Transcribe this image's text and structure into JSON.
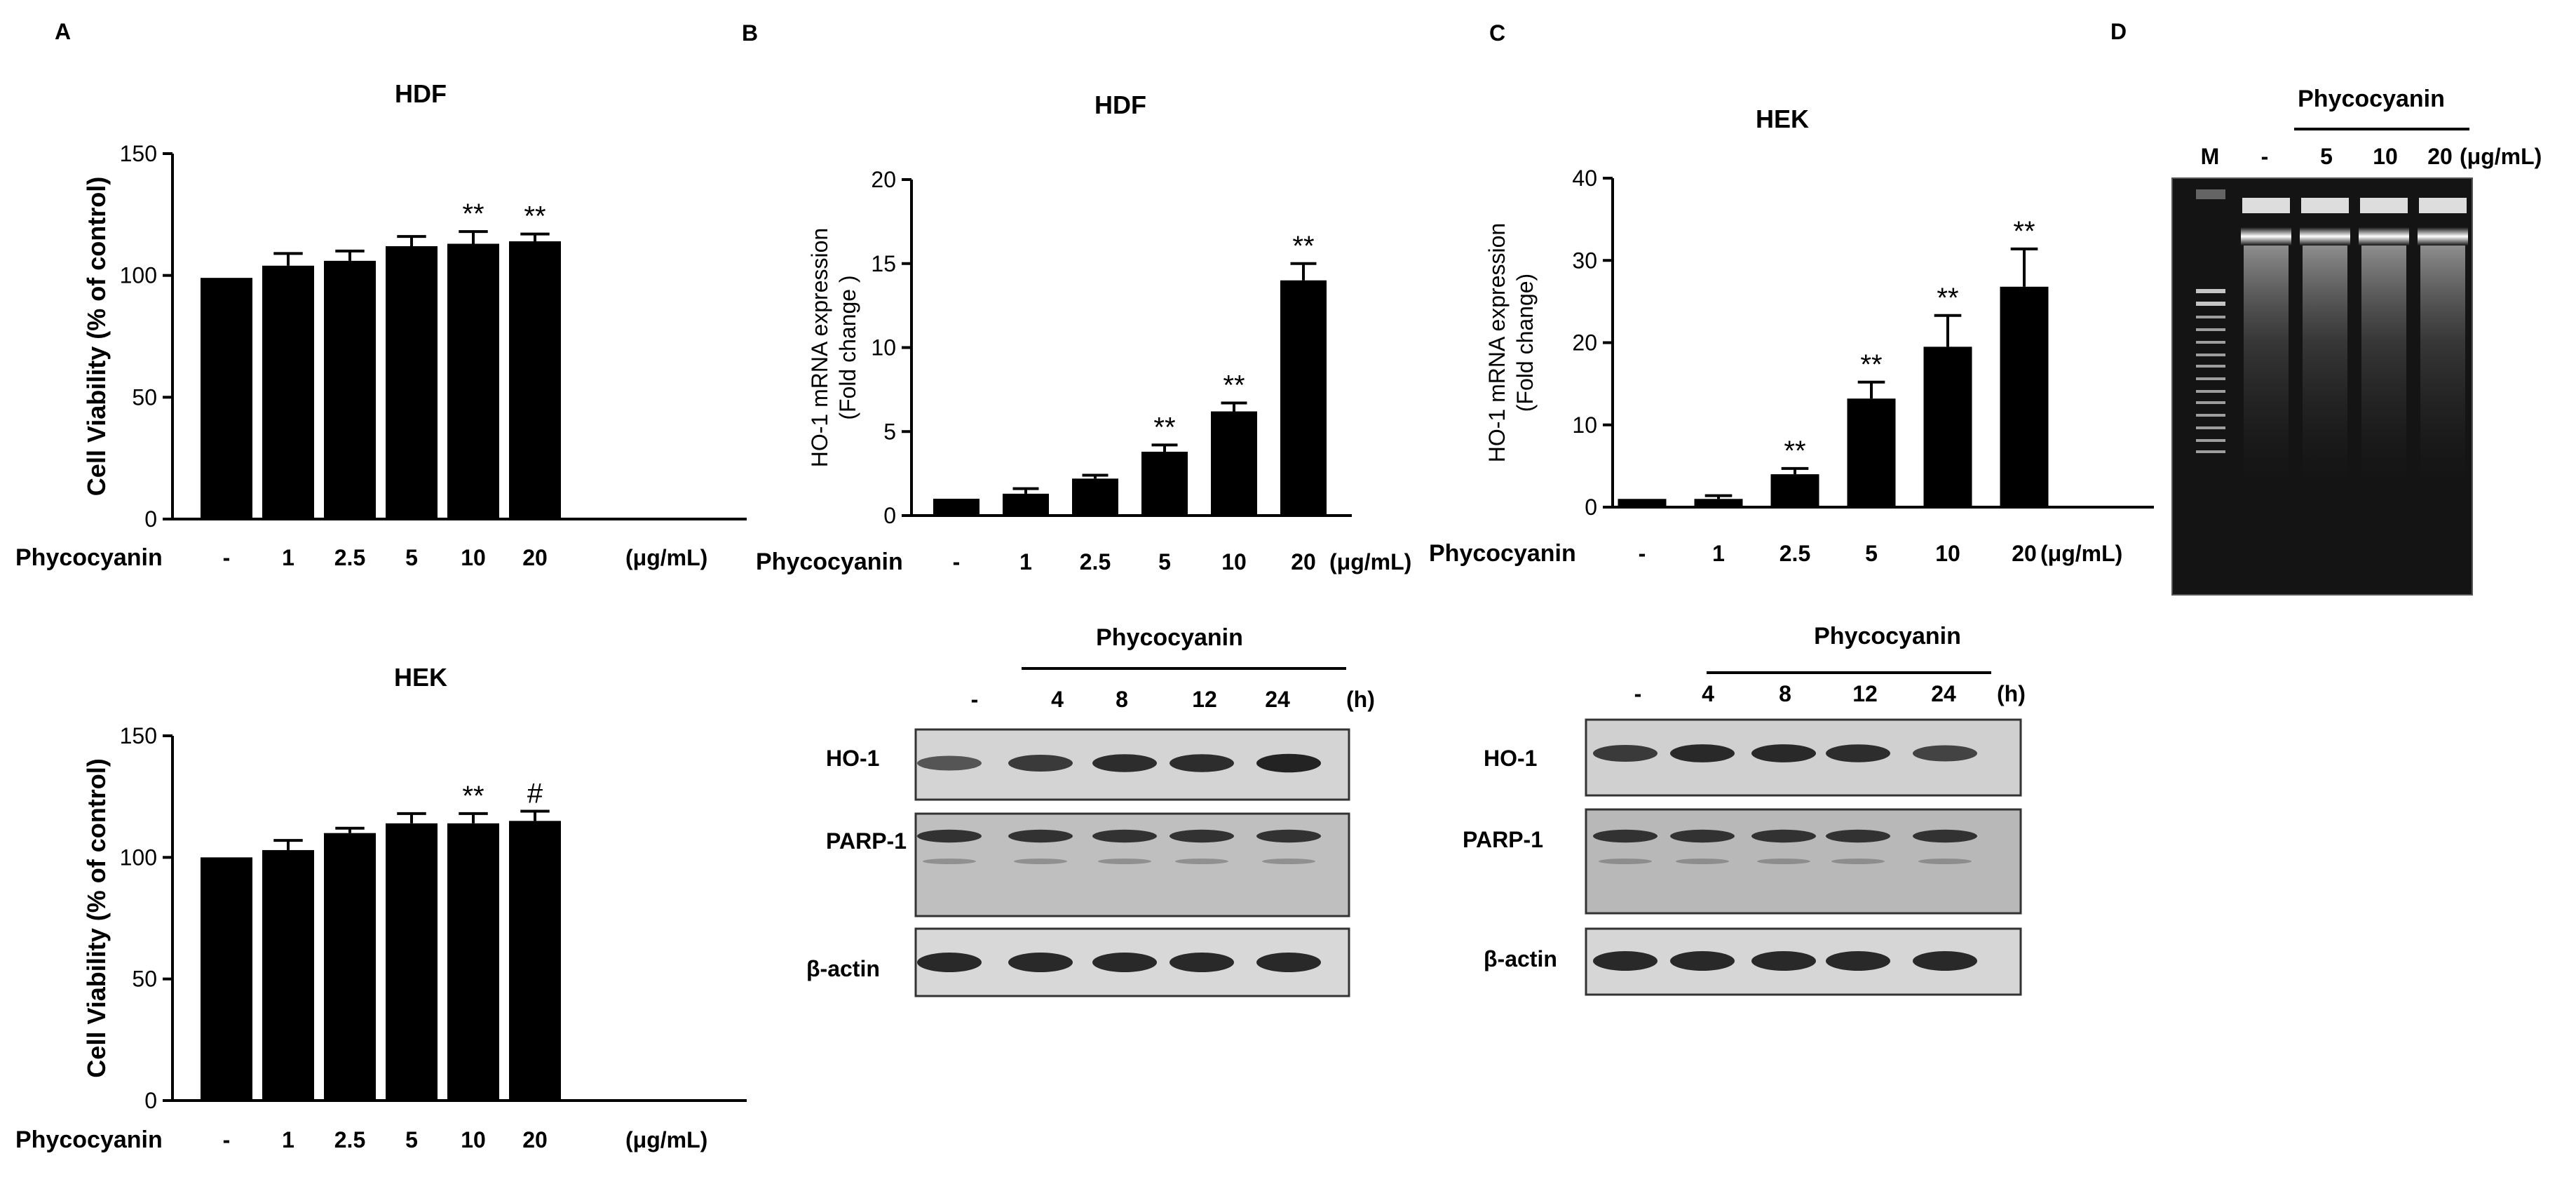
{
  "panel_letters": [
    "A",
    "B",
    "C",
    "D"
  ],
  "treatment_label": "Phycocyanin",
  "unit_label": "(μg/mL)",
  "time_unit_label": "(h)",
  "chart_data": [
    {
      "id": "A-HDF",
      "type": "bar",
      "title": "HDF",
      "xlabel": "",
      "ylabel": "Cell Viability (% of control)",
      "categories": [
        "-",
        "1",
        "2.5",
        "5",
        "10",
        "20"
      ],
      "values": [
        99,
        104,
        106,
        112,
        113,
        114
      ],
      "errors": [
        0,
        5,
        4,
        4,
        5,
        3
      ],
      "annotations": [
        "",
        "",
        "",
        "",
        "**",
        "**"
      ],
      "ylim": [
        0,
        150
      ],
      "yticks": [
        "0",
        "50",
        "100",
        "150"
      ],
      "grid": false
    },
    {
      "id": "A-HEK",
      "type": "bar",
      "title": "HEK",
      "xlabel": "",
      "ylabel": "Cell Viability (% of control)",
      "categories": [
        "-",
        "1",
        "2.5",
        "5",
        "10",
        "20"
      ],
      "values": [
        100,
        103,
        110,
        114,
        114,
        115
      ],
      "errors": [
        0,
        4,
        2,
        4,
        4,
        4
      ],
      "annotations": [
        "",
        "",
        "",
        "",
        "**",
        "#"
      ],
      "ylim": [
        0,
        150
      ],
      "yticks": [
        "0",
        "50",
        "100",
        "150"
      ],
      "grid": false
    },
    {
      "id": "B-HDF",
      "type": "bar",
      "title": "HDF",
      "xlabel": "",
      "ylabel": "HO-1 mRNA expression (Fold change )",
      "categories": [
        "-",
        "1",
        "2.5",
        "5",
        "10",
        "20"
      ],
      "values": [
        1.0,
        1.3,
        2.2,
        3.8,
        6.2,
        14.0
      ],
      "errors": [
        0,
        0.3,
        0.2,
        0.4,
        0.5,
        1.0
      ],
      "annotations": [
        "",
        "",
        "",
        "**",
        "**",
        "**"
      ],
      "ylim": [
        0,
        20
      ],
      "yticks": [
        "0",
        "5",
        "10",
        "15",
        "20"
      ],
      "grid": false
    },
    {
      "id": "C-HEK",
      "type": "bar",
      "title": "HEK",
      "xlabel": "",
      "ylabel": "HO-1 mRNA expression (Fold change)",
      "categories": [
        "-",
        "1",
        "2.5",
        "5",
        "10",
        "20"
      ],
      "values": [
        1.0,
        1.0,
        4.0,
        13.2,
        19.5,
        26.8
      ],
      "errors": [
        0,
        0.4,
        0.7,
        2.0,
        3.8,
        4.6
      ],
      "annotations": [
        "",
        "",
        "**",
        "**",
        "**",
        "**"
      ],
      "ylim": [
        0,
        40
      ],
      "yticks": [
        "0",
        "10",
        "20",
        "30",
        "40"
      ],
      "grid": false
    }
  ],
  "blots": {
    "lanes": [
      "-",
      "4",
      "8",
      "12",
      "24"
    ],
    "rows": [
      "HO-1",
      "PARP-1",
      "β-actin"
    ],
    "B_intensity": [
      0.55,
      0.8,
      0.92,
      0.92,
      1.0
    ],
    "C_intensity": [
      0.8,
      0.95,
      0.95,
      0.92,
      0.72
    ]
  },
  "gel": {
    "lanes": [
      "M",
      "-",
      "5",
      "10",
      "20"
    ]
  }
}
